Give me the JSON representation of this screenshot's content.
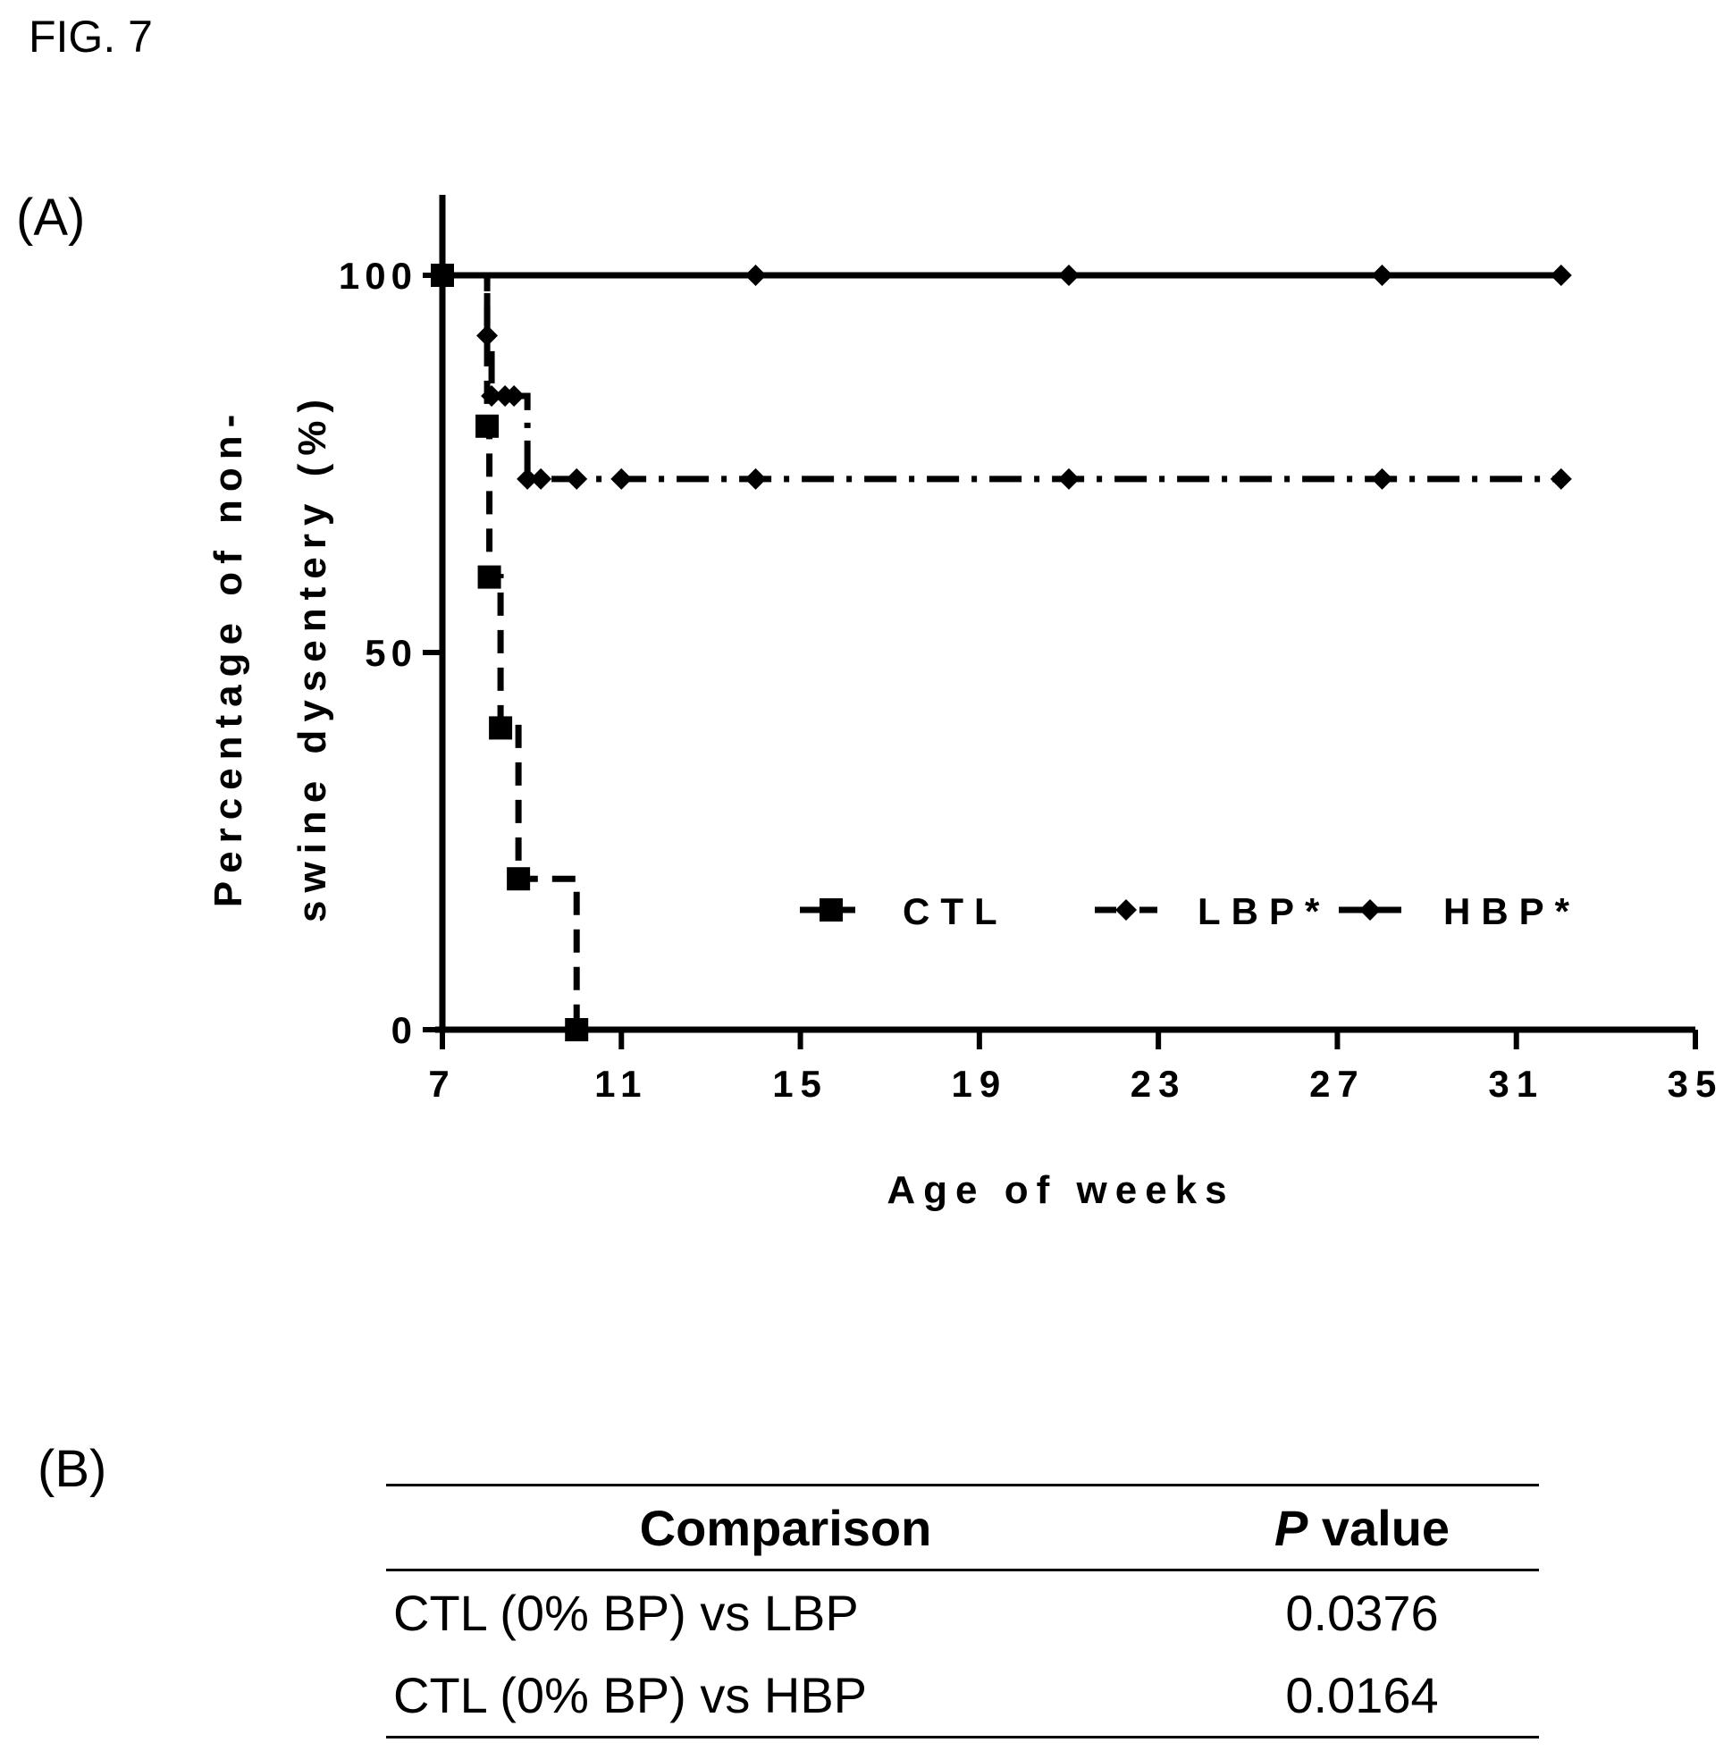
{
  "figure": {
    "title": "FIG. 7",
    "panel_a_label": "(A)",
    "panel_b_label": "(B)"
  },
  "chart_data": {
    "type": "line",
    "subtype": "kaplan-meier step curve",
    "title": "",
    "xlabel": "Age of weeks",
    "ylabel": "Percentage of non-\nswine dysentery (%)",
    "xlim": [
      7,
      35
    ],
    "ylim": [
      0,
      100
    ],
    "xticks": [
      7,
      11,
      15,
      19,
      23,
      27,
      31,
      35
    ],
    "yticks": [
      0,
      50,
      100
    ],
    "legend_position": "lower-right inside plot, single row",
    "grid": false,
    "series": [
      {
        "name": "CTL",
        "line_style": "dashed",
        "marker": "square",
        "points": [
          [
            7,
            100
          ],
          [
            8,
            80
          ],
          [
            8.05,
            60
          ],
          [
            8.3,
            40
          ],
          [
            8.7,
            20
          ],
          [
            10,
            0
          ]
        ]
      },
      {
        "name": "LBP*",
        "line_style": "dash-dot",
        "marker": "diamond",
        "points": [
          [
            7,
            100
          ],
          [
            8,
            92
          ],
          [
            8.1,
            84
          ],
          [
            8.4,
            84
          ],
          [
            8.6,
            84
          ],
          [
            8.9,
            73
          ],
          [
            9.2,
            73
          ],
          [
            10,
            73
          ],
          [
            11,
            73
          ],
          [
            14,
            73
          ],
          [
            21,
            73
          ],
          [
            28,
            73
          ],
          [
            32,
            73
          ]
        ]
      },
      {
        "name": "HBP*",
        "line_style": "solid",
        "marker": "diamond",
        "points": [
          [
            7,
            100
          ],
          [
            14,
            100
          ],
          [
            21,
            100
          ],
          [
            28,
            100
          ],
          [
            32,
            100
          ]
        ]
      }
    ]
  },
  "table": {
    "headers": {
      "comparison": "Comparison",
      "p_italic": "P",
      "p_rest": " value"
    },
    "rows": [
      {
        "comparison": "CTL (0% BP) vs LBP",
        "p": "0.0376"
      },
      {
        "comparison": "CTL (0% BP) vs HBP",
        "p": "0.0164"
      }
    ]
  }
}
